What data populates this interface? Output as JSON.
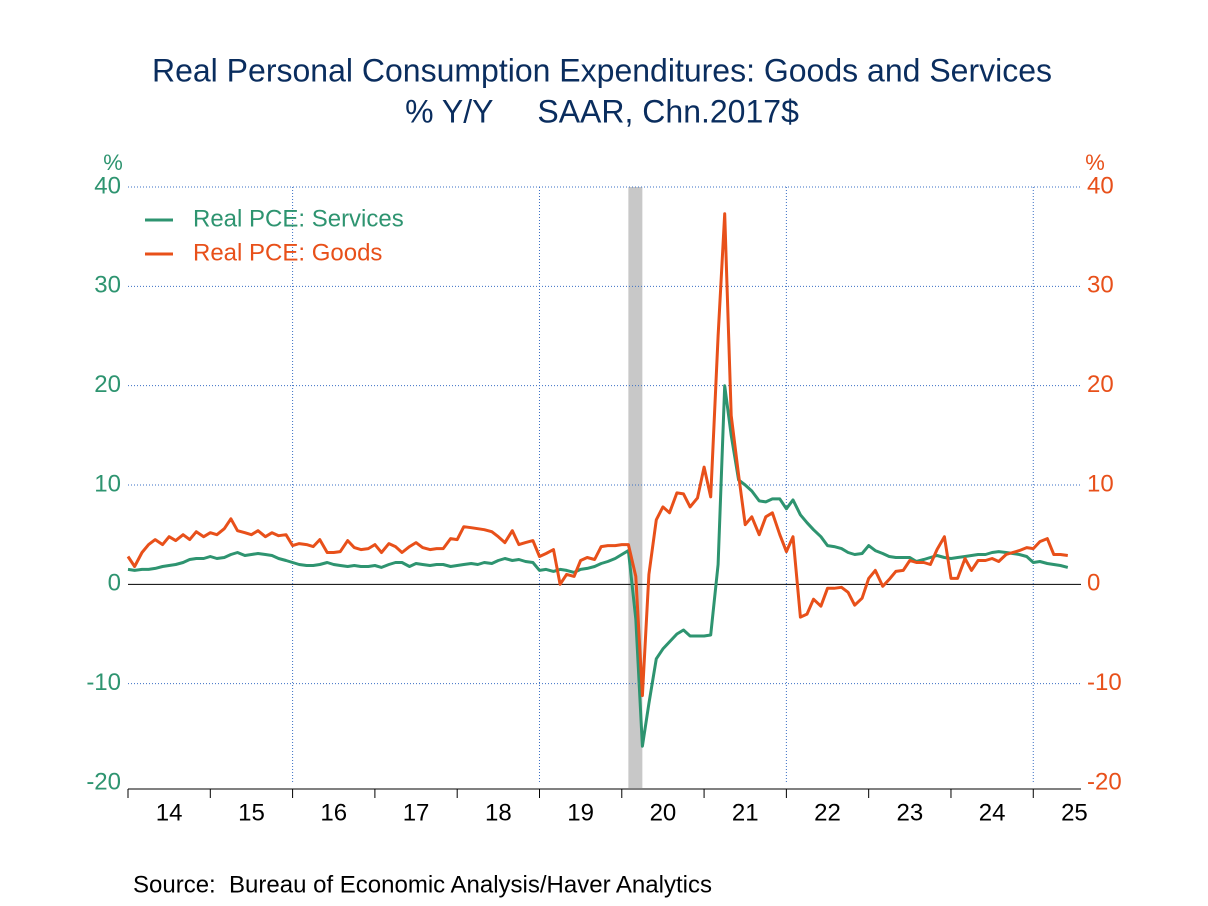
{
  "chart_data": {
    "type": "line",
    "title": "Real Personal Consumption Expenditures: Goods and Services",
    "subtitle": "% Y/Y     SAAR, Chn.2017$",
    "y_label": "%",
    "y2_label": "%",
    "source": "Source:  Bureau of Economic Analysis/Haver Analytics",
    "x": [
      2014,
      2014.08,
      2014.17,
      2014.25,
      2014.33,
      2014.42,
      2014.5,
      2014.58,
      2014.67,
      2014.75,
      2014.83,
      2014.92,
      2015,
      2015.08,
      2015.17,
      2015.25,
      2015.33,
      2015.42,
      2015.5,
      2015.58,
      2015.67,
      2015.75,
      2015.83,
      2015.92,
      2016,
      2016.08,
      2016.17,
      2016.25,
      2016.33,
      2016.42,
      2016.5,
      2016.58,
      2016.67,
      2016.75,
      2016.83,
      2016.92,
      2017,
      2017.08,
      2017.17,
      2017.25,
      2017.33,
      2017.42,
      2017.5,
      2017.58,
      2017.67,
      2017.75,
      2017.83,
      2017.92,
      2018,
      2018.08,
      2018.17,
      2018.25,
      2018.33,
      2018.42,
      2018.5,
      2018.58,
      2018.67,
      2018.75,
      2018.83,
      2018.92,
      2019,
      2019.08,
      2019.17,
      2019.25,
      2019.33,
      2019.42,
      2019.5,
      2019.58,
      2019.67,
      2019.75,
      2019.83,
      2019.92,
      2020,
      2020.08,
      2020.17,
      2020.25,
      2020.33,
      2020.42,
      2020.5,
      2020.58,
      2020.67,
      2020.75,
      2020.83,
      2020.92,
      2021,
      2021.08,
      2021.17,
      2021.25,
      2021.33,
      2021.42,
      2021.5,
      2021.58,
      2021.67,
      2021.75,
      2021.83,
      2021.92,
      2022,
      2022.08,
      2022.17,
      2022.25,
      2022.33,
      2022.42,
      2022.5,
      2022.58,
      2022.67,
      2022.75,
      2022.83,
      2022.92,
      2023,
      2023.08,
      2023.17,
      2023.25,
      2023.33,
      2023.42,
      2023.5,
      2023.58,
      2023.67,
      2023.75,
      2023.83,
      2023.92,
      2024,
      2024.08,
      2024.17,
      2024.25,
      2024.33,
      2024.42,
      2024.5,
      2024.58,
      2024.67,
      2024.75,
      2024.83,
      2024.92,
      2025,
      2025.08,
      2025.17,
      2025.25,
      2025.33,
      2025.42
    ],
    "series": [
      {
        "name": "Real PCE: Services",
        "color": "#2e9470",
        "axis": "y",
        "values": [
          1.5,
          1.4,
          1.5,
          1.5,
          1.6,
          1.8,
          1.9,
          2.0,
          2.2,
          2.5,
          2.6,
          2.6,
          2.8,
          2.6,
          2.7,
          3.0,
          3.2,
          2.9,
          3.0,
          3.1,
          3.0,
          2.9,
          2.6,
          2.4,
          2.2,
          2.0,
          1.9,
          1.9,
          2.0,
          2.2,
          2.0,
          1.9,
          1.8,
          1.9,
          1.8,
          1.8,
          1.9,
          1.7,
          2.0,
          2.2,
          2.2,
          1.8,
          2.1,
          2.0,
          1.9,
          2.0,
          2.0,
          1.8,
          1.9,
          2.0,
          2.1,
          2.0,
          2.2,
          2.1,
          2.4,
          2.6,
          2.4,
          2.5,
          2.3,
          2.2,
          1.4,
          1.5,
          1.3,
          1.5,
          1.4,
          1.2,
          1.5,
          1.6,
          1.8,
          2.1,
          2.3,
          2.6,
          3.0,
          3.4,
          -3.5,
          -16.3,
          -12.0,
          -7.5,
          -6.5,
          -5.8,
          -5.0,
          -4.6,
          -5.2,
          -5.2,
          -5.2,
          -5.1,
          2.0,
          20.0,
          15.0,
          10.5,
          10.0,
          9.4,
          8.4,
          8.3,
          8.6,
          8.6,
          7.6,
          8.5,
          7.0,
          6.2,
          5.5,
          4.8,
          3.9,
          3.8,
          3.6,
          3.2,
          3.0,
          3.1,
          3.9,
          3.4,
          3.1,
          2.8,
          2.7,
          2.7,
          2.7,
          2.3,
          2.5,
          2.7,
          2.9,
          2.7,
          2.6,
          2.7,
          2.8,
          2.9,
          3.0,
          3.0,
          3.2,
          3.3,
          3.2,
          3.1,
          3.0,
          2.8,
          2.2,
          2.3,
          2.1,
          2.0,
          1.9,
          1.7
        ]
      },
      {
        "name": "Real PCE: Goods",
        "color": "#e8501a",
        "axis": "y2",
        "values": [
          2.8,
          1.8,
          3.2,
          4.0,
          4.5,
          4.0,
          4.8,
          4.4,
          5.0,
          4.5,
          5.3,
          4.8,
          5.2,
          5.0,
          5.6,
          6.6,
          5.4,
          5.2,
          5.0,
          5.4,
          4.8,
          5.2,
          4.9,
          5.0,
          3.9,
          4.1,
          4.0,
          3.8,
          4.5,
          3.2,
          3.2,
          3.3,
          4.4,
          3.7,
          3.5,
          3.6,
          4.0,
          3.2,
          4.1,
          3.8,
          3.2,
          3.8,
          4.2,
          3.7,
          3.5,
          3.6,
          3.6,
          4.6,
          4.5,
          5.8,
          5.7,
          5.6,
          5.5,
          5.3,
          4.8,
          4.2,
          5.4,
          4.0,
          4.2,
          4.4,
          2.8,
          3.1,
          3.5,
          0.0,
          1.0,
          0.8,
          2.4,
          2.7,
          2.5,
          3.8,
          3.9,
          3.9,
          4.0,
          4.0,
          0.8,
          -11.2,
          1.0,
          6.5,
          7.8,
          7.2,
          9.2,
          9.1,
          7.8,
          8.7,
          11.8,
          8.8,
          25.0,
          37.3,
          17.0,
          11.0,
          6.0,
          6.8,
          5.0,
          6.8,
          7.2,
          5.0,
          3.3,
          4.8,
          -3.3,
          -3.0,
          -1.5,
          -2.2,
          -0.4,
          -0.4,
          -0.3,
          -0.8,
          -2.1,
          -1.4,
          0.6,
          1.4,
          -0.2,
          0.5,
          1.3,
          1.4,
          2.4,
          2.2,
          2.2,
          2.0,
          3.5,
          4.8,
          0.6,
          0.6,
          2.6,
          1.4,
          2.4,
          2.4,
          2.6,
          2.3,
          3.0,
          3.2,
          3.4,
          3.7,
          3.6,
          4.3,
          4.6,
          3.0,
          3.0,
          2.9
        ]
      }
    ],
    "xlim": [
      2014,
      2025.58
    ],
    "xticks": [
      {
        "value": 2014,
        "label": "14"
      },
      {
        "value": 2015,
        "label": "15"
      },
      {
        "value": 2016,
        "label": "16"
      },
      {
        "value": 2017,
        "label": "17"
      },
      {
        "value": 2018,
        "label": "18"
      },
      {
        "value": 2019,
        "label": "19"
      },
      {
        "value": 2020,
        "label": "20"
      },
      {
        "value": 2021,
        "label": "21"
      },
      {
        "value": 2022,
        "label": "22"
      },
      {
        "value": 2023,
        "label": "23"
      },
      {
        "value": 2024,
        "label": "24"
      },
      {
        "value": 2025,
        "label": "25"
      }
    ],
    "xgrid": [
      2016,
      2019,
      2022,
      2025
    ],
    "ylim": [
      -20,
      40
    ],
    "yticks": [
      -20,
      -10,
      0,
      10,
      20,
      30,
      40
    ],
    "y2lim": [
      -20,
      40
    ],
    "y2ticks": [
      -20,
      -10,
      0,
      10,
      20,
      30,
      40
    ],
    "shaded_periods": [
      [
        2020.08,
        2020.25
      ]
    ],
    "grid": true,
    "legend": "top-left"
  }
}
